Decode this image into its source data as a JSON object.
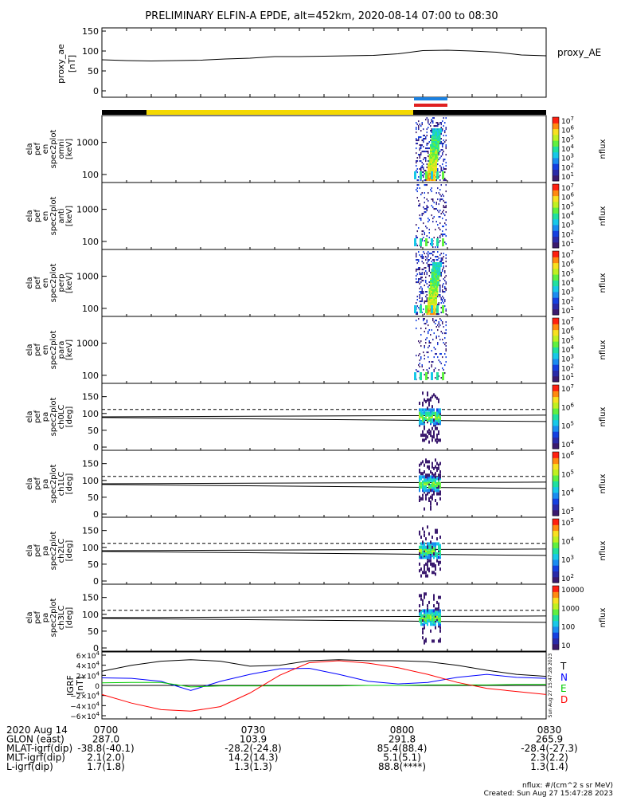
{
  "title": "PRELIMINARY ELFIN-A EPDE, alt=452km, 2020-08-14 07:00 to 08:30",
  "chart_data": [
    {
      "type": "line",
      "panel": "proxy_ae",
      "ylabel": [
        "proxy_ae",
        "[nT]"
      ],
      "legend": "proxy_AE",
      "ylim": [
        0,
        150
      ],
      "yticks": [
        "150",
        "100",
        "50",
        "0"
      ],
      "x_minutes": [
        0,
        5,
        10,
        15,
        20,
        25,
        30,
        35,
        40,
        45,
        50,
        55,
        60,
        65,
        70,
        75,
        80,
        85,
        90
      ],
      "values": [
        78,
        76,
        75,
        76,
        77,
        80,
        82,
        86,
        86,
        87,
        88,
        89,
        93,
        101,
        102,
        100,
        97,
        90,
        88
      ]
    },
    {
      "type": "heatmap",
      "panel": "spec-omni",
      "ylabel": [
        "ela",
        "pef",
        "en",
        "spec2plot",
        "omni",
        "[keV]"
      ],
      "yticks": [
        "1000",
        "100"
      ],
      "scale": "log",
      "colorbar_label": "nflux",
      "colorbar_ticks": [
        "10^7",
        "10^6",
        "10^5",
        "10^4",
        "10^3",
        "10^2",
        "10^1"
      ]
    },
    {
      "type": "heatmap",
      "panel": "spec-anti",
      "ylabel": [
        "ela",
        "pef",
        "en",
        "spec2plot",
        "anti",
        "[keV]"
      ],
      "yticks": [
        "1000",
        "100"
      ],
      "scale": "log",
      "colorbar_label": "nflux",
      "colorbar_ticks": [
        "10^7",
        "10^6",
        "10^5",
        "10^4",
        "10^3",
        "10^2",
        "10^1"
      ]
    },
    {
      "type": "heatmap",
      "panel": "spec-perp",
      "ylabel": [
        "ela",
        "pef",
        "en",
        "spec2plot",
        "perp",
        "[keV]"
      ],
      "yticks": [
        "1000",
        "100"
      ],
      "scale": "log",
      "colorbar_label": "nflux",
      "colorbar_ticks": [
        "10^7",
        "10^6",
        "10^5",
        "10^4",
        "10^3",
        "10^2",
        "10^1"
      ]
    },
    {
      "type": "heatmap",
      "panel": "spec-para",
      "ylabel": [
        "ela",
        "pef",
        "en",
        "spec2plot",
        "para",
        "[keV]"
      ],
      "yticks": [
        "1000",
        "100"
      ],
      "scale": "log",
      "colorbar_label": "nflux",
      "colorbar_ticks": [
        "10^7",
        "10^6",
        "10^5",
        "10^4",
        "10^3",
        "10^2",
        "10^1"
      ]
    },
    {
      "type": "heatmap",
      "panel": "pa-ch0",
      "ylabel": [
        "ela",
        "pef",
        "pa",
        "spec2plot",
        "ch0LC",
        "[deg]"
      ],
      "ylim": [
        0,
        180
      ],
      "yticks": [
        "150",
        "100",
        "50",
        "0"
      ],
      "colorbar_label": "nflux",
      "colorbar_ticks": [
        "10^7",
        "10^6",
        "10^5",
        "10^4"
      ]
    },
    {
      "type": "heatmap",
      "panel": "pa-ch1",
      "ylabel": [
        "ela",
        "pef",
        "pa",
        "spec2plot",
        "ch1LC",
        "[deg]"
      ],
      "ylim": [
        0,
        180
      ],
      "yticks": [
        "150",
        "100",
        "50",
        "0"
      ],
      "colorbar_label": "nflux",
      "colorbar_ticks": [
        "10^6",
        "10^5",
        "10^4",
        "10^3"
      ]
    },
    {
      "type": "heatmap",
      "panel": "pa-ch2",
      "ylabel": [
        "ela",
        "pef",
        "pa",
        "spec2plot",
        "ch2LC",
        "[deg]"
      ],
      "ylim": [
        0,
        180
      ],
      "yticks": [
        "150",
        "100",
        "50",
        "0"
      ],
      "colorbar_label": "nflux",
      "colorbar_ticks": [
        "10^5",
        "10^4",
        "10^3",
        "10^2"
      ]
    },
    {
      "type": "heatmap",
      "panel": "pa-ch3",
      "ylabel": [
        "ela",
        "pef",
        "pa",
        "spec2plot",
        "ch3LC",
        "[deg]"
      ],
      "ylim": [
        0,
        180
      ],
      "yticks": [
        "150",
        "100",
        "50",
        "0"
      ],
      "colorbar_label": "nflux",
      "colorbar_ticks": [
        "10000",
        "1000",
        "100",
        "10"
      ]
    },
    {
      "type": "line",
      "panel": "igrf",
      "ylabel": [
        "IGRF",
        "[nT]"
      ],
      "ylim": [
        -60000,
        60000
      ],
      "yticks": [
        "6×10^4",
        "4×10^4",
        "2×10^4",
        "0",
        "−2×10^4",
        "−4×10^4",
        "−6×10^4"
      ],
      "x_minutes": [
        0,
        6,
        12,
        18,
        24,
        30,
        36,
        42,
        48,
        54,
        60,
        66,
        72,
        78,
        84,
        90
      ],
      "series": [
        {
          "name": "T",
          "color": "#000000",
          "values": [
            28000,
            40000,
            48000,
            51000,
            48000,
            38000,
            40000,
            49000,
            51000,
            49000,
            49000,
            47000,
            40000,
            30000,
            22000,
            18000
          ]
        },
        {
          "name": "N",
          "color": "#0000ff",
          "values": [
            15000,
            14000,
            8000,
            -10000,
            8000,
            22000,
            33000,
            34000,
            22000,
            8000,
            3000,
            6000,
            16000,
            22000,
            16000,
            14000
          ]
        },
        {
          "name": "E",
          "color": "#00cc00",
          "values": [
            5000,
            6000,
            6000,
            -3000,
            -1000,
            -1000,
            -1000,
            -1000,
            -1000,
            0,
            0,
            1000,
            1000,
            1000,
            2000,
            2000
          ]
        },
        {
          "name": "D",
          "color": "#ff0000",
          "values": [
            -18000,
            -35000,
            -48000,
            -51000,
            -42000,
            -15000,
            20000,
            45000,
            49000,
            44000,
            35000,
            22000,
            6000,
            -6000,
            -12000,
            -18000
          ]
        }
      ]
    }
  ],
  "side_stamp": "Sun Aug 27 15:47:28 2023",
  "bottom": {
    "rows": [
      {
        "label": "2020 Aug 14",
        "v1": "0700",
        "v2": "0730",
        "v3": "0800",
        "v4": "0830"
      },
      {
        "label": "GLON (east)",
        "v1": "287.0",
        "v2": "103.9",
        "v3": "291.8",
        "v4": "265.9"
      },
      {
        "label": "MLAT-igrf(dip)",
        "v1": "-38.8(-40.1)",
        "v2": "-28.2(-24.8)",
        "v3": "85.4(88.4)",
        "v4": "-28.4(-27.3)"
      },
      {
        "label": "MLT-igrf(dip)",
        "v1": "2.1(2.0)",
        "v2": "14.2(14.3)",
        "v3": "5.1(5.1)",
        "v4": "2.3(2.2)"
      },
      {
        "label": "L-igrf(dip)",
        "v1": "1.7(1.8)",
        "v2": "1.3(1.3)",
        "v3": "88.8(****)",
        "v4": "1.3(1.4)"
      }
    ],
    "units": "nflux: #/(cm^2 s sr MeV)",
    "created": "Created: Sun Aug 27 15:47:28 2023"
  }
}
